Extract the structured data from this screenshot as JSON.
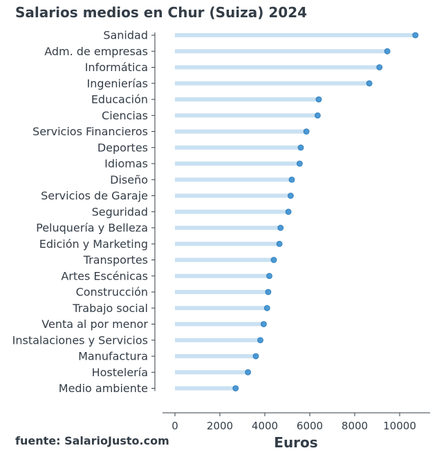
{
  "chart_data": {
    "type": "lollipop",
    "title": "Salarios medios en Chur (Suiza) 2024",
    "xlabel": "Euros",
    "ylabel": "",
    "source": "fuente: SalarioJusto.com",
    "xlim": [
      -500,
      11000
    ],
    "xticks": [
      0,
      2000,
      4000,
      6000,
      8000,
      10000
    ],
    "grid": false,
    "colors": {
      "stem": "#c9e1f2",
      "point": "#3a8fd0",
      "point_edge": "#2b78b6",
      "text": "#333d47",
      "axis": "#333d47"
    },
    "categories": [
      "Sanidad",
      "Adm. de empresas",
      "Informática",
      "Ingenierías",
      "Educación",
      "Ciencias",
      "Servicios Financieros",
      "Deportes",
      "Idiomas",
      "Diseño",
      "Servicios de Garaje",
      "Seguridad",
      "Peluquería y Belleza",
      "Edición y Marketing",
      "Transportes",
      "Artes Escénicas",
      "Construcción",
      "Trabajo social",
      "Venta al por menor",
      "Instalaciones y Servicios",
      "Manufactura",
      "Hostelería",
      "Medio ambiente"
    ],
    "values": [
      10700,
      9450,
      9100,
      8650,
      6400,
      6350,
      5850,
      5600,
      5550,
      5200,
      5150,
      5050,
      4700,
      4650,
      4400,
      4200,
      4150,
      4100,
      3950,
      3800,
      3600,
      3250,
      2700
    ]
  }
}
